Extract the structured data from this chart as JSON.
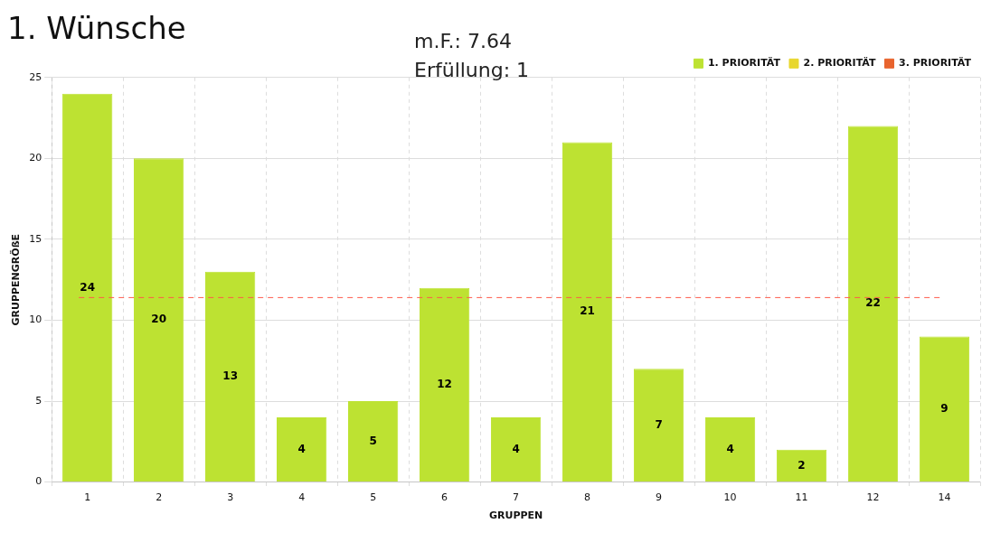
{
  "chart_data": {
    "type": "bar",
    "title": "1. Wünsche",
    "xlabel": "GRUPPEN",
    "ylabel": "GRUPPENGRÖßE",
    "annotations": [
      "m.F.: 7.64",
      "Erfüllung: 1"
    ],
    "categories": [
      "1",
      "2",
      "3",
      "4",
      "5",
      "6",
      "7",
      "8",
      "9",
      "10",
      "11",
      "12",
      "14"
    ],
    "series": [
      {
        "name": "1. PRIORITÄT",
        "color": "#bde232",
        "values": [
          24,
          20,
          13,
          4,
          5,
          12,
          4,
          21,
          7,
          4,
          2,
          22,
          9
        ]
      },
      {
        "name": "2. PRIORITÄT",
        "color": "#e8d72e",
        "values": [
          null,
          null,
          null,
          null,
          null,
          null,
          null,
          null,
          null,
          null,
          null,
          null,
          null
        ]
      },
      {
        "name": "3. PRIORITÄT",
        "color": "#e8642e",
        "values": [
          null,
          null,
          null,
          null,
          null,
          null,
          null,
          null,
          null,
          null,
          null,
          null,
          null
        ]
      }
    ],
    "stacked": true,
    "ylim": [
      0,
      25
    ],
    "yticks": [
      0,
      5,
      10,
      15,
      20,
      25
    ],
    "grid": true,
    "legend": "top right",
    "data_labels": true,
    "ref_lines": [
      {
        "axis": "y",
        "value": 11.4,
        "color": "#ff5a4a",
        "line_style": "dashed"
      }
    ]
  }
}
